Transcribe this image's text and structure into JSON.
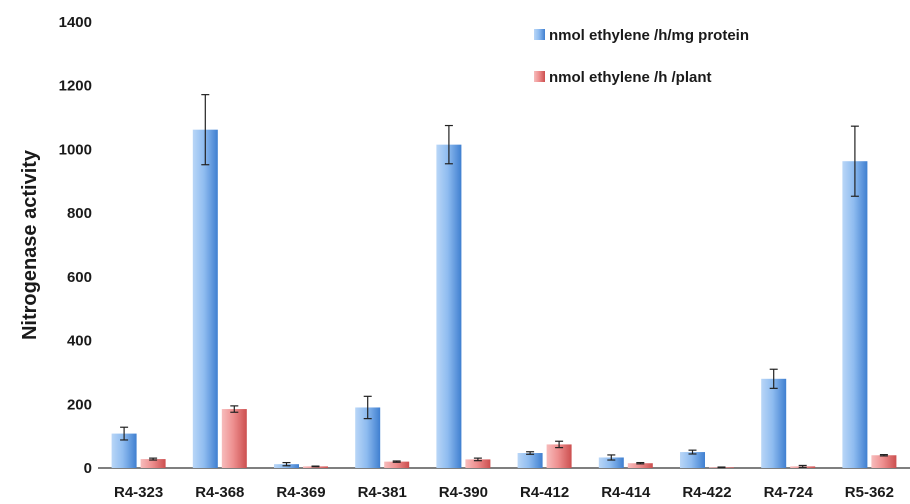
{
  "chart_data": {
    "type": "bar",
    "title": "",
    "xlabel": "",
    "ylabel": "Nitrogenase activity",
    "ylim": [
      0,
      1400
    ],
    "yticks": [
      0,
      200,
      400,
      600,
      800,
      1000,
      1200,
      1400
    ],
    "grid": false,
    "legend_position": "top-right",
    "categories": [
      "R4-323",
      "R4-368",
      "R4-369",
      "R4-381",
      "R4-390",
      "R4-412",
      "R4-414",
      "R4-422",
      "R4-724",
      "R5-362"
    ],
    "series": [
      {
        "name": "nmol ethylene /h/mg protein",
        "color": "#6fa8e8",
        "values": [
          108,
          1062,
          12,
          190,
          1015,
          47,
          33,
          50,
          280,
          963
        ],
        "errors": [
          20,
          110,
          5,
          35,
          60,
          4,
          8,
          6,
          30,
          110
        ]
      },
      {
        "name": "nmol ethylene /h /plant",
        "color": "#e97b7b",
        "values": [
          28,
          185,
          5,
          20,
          27,
          74,
          15,
          2,
          5,
          40
        ],
        "errors": [
          3,
          10,
          1,
          2,
          4,
          10,
          2,
          1,
          3,
          2
        ]
      }
    ]
  }
}
